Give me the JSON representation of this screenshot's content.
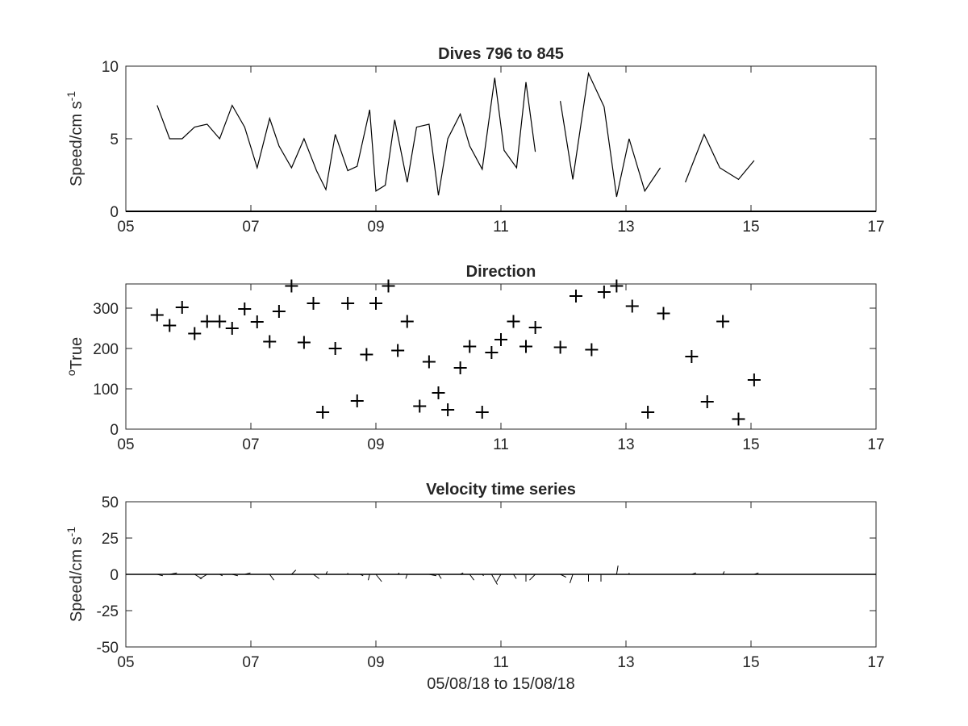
{
  "figure": {
    "xlabel": "05/08/18 to 15/08/18"
  },
  "chart_data": [
    {
      "type": "line",
      "title": "Dives 796 to 845",
      "ylabel_main": "Speed/cm s",
      "ylabel_sup": "-1",
      "xlim": [
        5,
        17
      ],
      "ylim": [
        0,
        10
      ],
      "xticks": [
        5,
        7,
        9,
        11,
        13,
        15,
        17
      ],
      "xtick_labels": [
        "05",
        "07",
        "09",
        "11",
        "13",
        "15",
        "17"
      ],
      "yticks": [
        0,
        5,
        10
      ],
      "ytick_labels": [
        "0",
        "5",
        "10"
      ],
      "series": [
        {
          "x": [
            5.5,
            5.7,
            5.9,
            6.1,
            6.3,
            6.5,
            6.7,
            6.9,
            7.1,
            7.3,
            7.45,
            7.65,
            7.85,
            8.05,
            8.2,
            8.35,
            8.55,
            8.7,
            8.9,
            9.0,
            9.15,
            9.3,
            9.5,
            9.65,
            9.85,
            10.0,
            10.15,
            10.35,
            10.5,
            10.7,
            10.9,
            11.05,
            11.25,
            11.4,
            11.55,
            null,
            11.95,
            12.15,
            12.4,
            12.65,
            12.85,
            13.05,
            13.3,
            13.55,
            null,
            13.95,
            14.25,
            14.5,
            14.8,
            15.05
          ],
          "y": [
            7.3,
            5.0,
            5.0,
            5.8,
            6.0,
            5.0,
            7.3,
            5.8,
            3.0,
            6.4,
            4.5,
            3.0,
            5.0,
            2.8,
            1.5,
            5.3,
            2.8,
            3.1,
            7.0,
            1.4,
            1.8,
            6.3,
            2.0,
            5.8,
            6.0,
            1.1,
            5.0,
            6.7,
            4.5,
            2.9,
            9.2,
            4.2,
            3.0,
            8.9,
            4.1,
            null,
            7.6,
            2.2,
            9.5,
            7.2,
            1.0,
            5.0,
            1.4,
            3.0,
            null,
            2.0,
            5.3,
            3.0,
            2.2,
            3.5
          ]
        }
      ]
    },
    {
      "type": "scatter",
      "title": "Direction",
      "ylabel_main": "True",
      "ylabel_sup": "o",
      "xlim": [
        5,
        17
      ],
      "ylim": [
        0,
        360
      ],
      "xticks": [
        5,
        7,
        9,
        11,
        13,
        15,
        17
      ],
      "xtick_labels": [
        "05",
        "07",
        "09",
        "11",
        "13",
        "15",
        "17"
      ],
      "yticks": [
        0,
        100,
        200,
        300
      ],
      "ytick_labels": [
        "0",
        "100",
        "200",
        "300"
      ],
      "series": [
        {
          "marker": "+",
          "x": [
            5.5,
            5.7,
            5.9,
            6.1,
            6.3,
            6.5,
            6.7,
            6.9,
            7.1,
            7.3,
            7.45,
            7.65,
            7.85,
            8.0,
            8.15,
            8.35,
            8.55,
            8.7,
            8.85,
            9.0,
            9.2,
            9.35,
            9.5,
            9.7,
            9.85,
            10.0,
            10.15,
            10.35,
            10.5,
            10.7,
            10.85,
            11.0,
            11.2,
            11.4,
            11.55,
            11.95,
            12.2,
            12.45,
            12.65,
            12.85,
            13.1,
            13.35,
            13.6,
            14.05,
            14.3,
            14.55,
            14.8,
            15.05
          ],
          "y": [
            283,
            257,
            302,
            237,
            267,
            267,
            250,
            298,
            266,
            217,
            292,
            355,
            215,
            312,
            42,
            200,
            312,
            70,
            185,
            312,
            355,
            195,
            267,
            57,
            167,
            90,
            48,
            152,
            205,
            42,
            190,
            222,
            267,
            205,
            252,
            203,
            330,
            197,
            340,
            355,
            305,
            42,
            287,
            180,
            68,
            267,
            25,
            122
          ]
        }
      ]
    },
    {
      "type": "quiver",
      "title": "Velocity time series",
      "ylabel_main": "Speed/cm s",
      "ylabel_sup": "-1",
      "xlim": [
        5,
        17
      ],
      "ylim": [
        -50,
        50
      ],
      "xticks": [
        5,
        7,
        9,
        11,
        13,
        15,
        17
      ],
      "xtick_labels": [
        "05",
        "07",
        "09",
        "11",
        "13",
        "15",
        "17"
      ],
      "yticks": [
        -50,
        -25,
        0,
        25,
        50
      ],
      "ytick_labels": [
        "-50",
        "-25",
        "0",
        "25",
        "50"
      ],
      "x": [
        5.3,
        5.5,
        5.7,
        5.9,
        6.1,
        6.3,
        6.5,
        6.7,
        6.9,
        7.1,
        7.3,
        7.45,
        7.65,
        7.85,
        8.0,
        8.2,
        8.35,
        8.55,
        8.75,
        8.9,
        9.0,
        9.15,
        9.35,
        9.5,
        9.7,
        9.85,
        10.0,
        10.2,
        10.35,
        10.5,
        10.7,
        10.85,
        11.0,
        11.2,
        11.4,
        11.55,
        11.95,
        12.15,
        12.4,
        12.6,
        12.85,
        13.05,
        13.3,
        13.55,
        14.05,
        14.3,
        14.55,
        14.8,
        15.05
      ],
      "u": [
        5,
        4,
        5,
        6,
        5,
        -5,
        2,
        4,
        4,
        -3,
        3,
        0,
        3,
        -1,
        4,
        1,
        3,
        0,
        2,
        -1,
        4,
        0,
        1,
        -1,
        2,
        5,
        2,
        3,
        2,
        3,
        1,
        4,
        -3,
        2,
        0,
        -4,
        4,
        -2,
        0,
        0,
        1,
        0,
        4,
        1,
        3,
        0,
        1,
        2,
        3
      ],
      "v": [
        0,
        -1,
        1,
        0,
        -3,
        -3,
        -1,
        -1,
        1,
        0,
        -4,
        0,
        3,
        0,
        -3,
        2,
        0,
        1,
        -1,
        -4,
        -5,
        0,
        1,
        -3,
        0,
        -1,
        -3,
        0,
        1,
        -4,
        -1,
        -7,
        -5,
        -3,
        -5,
        -4,
        -2,
        -6,
        -5,
        -5,
        6,
        1,
        0,
        0,
        1,
        0,
        2,
        0,
        1
      ]
    }
  ]
}
